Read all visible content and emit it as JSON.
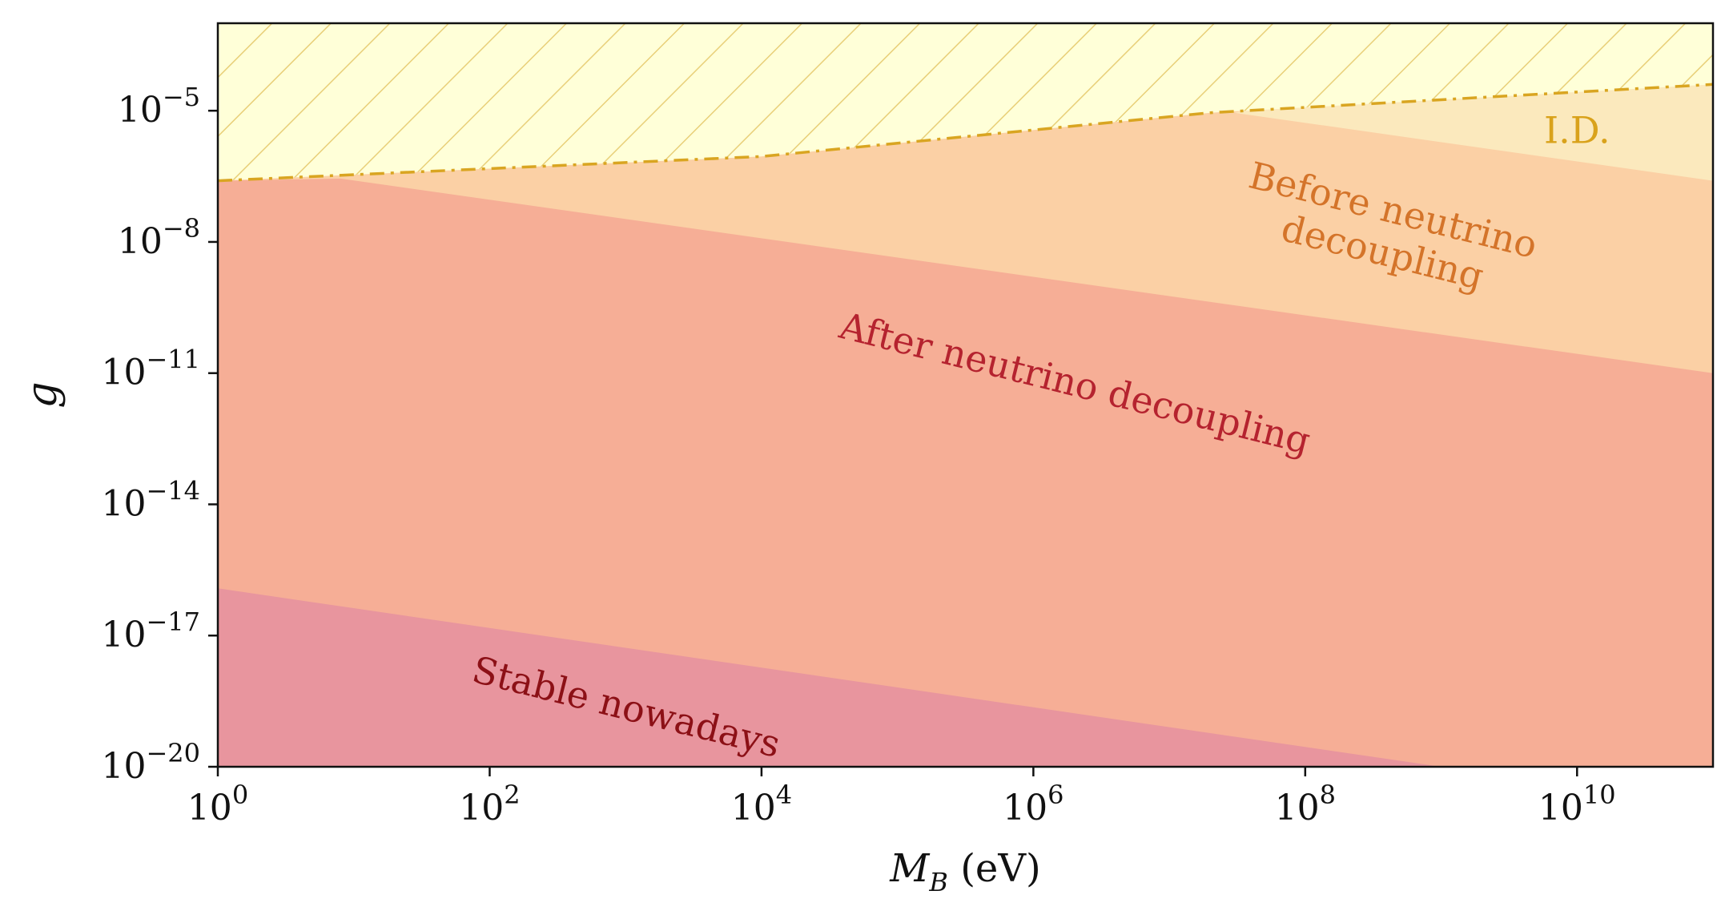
{
  "chart_data": {
    "type": "area",
    "x_scale": "log",
    "y_scale": "log",
    "xlim": [
      1,
      100000000000
    ],
    "ylim": [
      1e-20,
      0.001
    ],
    "xlabel": {
      "main": "M",
      "sub": "B",
      "unit": " (eV)"
    },
    "ylabel": "g",
    "x_ticks": [
      {
        "base": "10",
        "exp": "0"
      },
      {
        "base": "10",
        "exp": "2"
      },
      {
        "base": "10",
        "exp": "4"
      },
      {
        "base": "10",
        "exp": "6"
      },
      {
        "base": "10",
        "exp": "8"
      },
      {
        "base": "10",
        "exp": "10"
      }
    ],
    "y_ticks": [
      {
        "base": "10",
        "exp": "−5"
      },
      {
        "base": "10",
        "exp": "−8"
      },
      {
        "base": "10",
        "exp": "−11"
      },
      {
        "base": "10",
        "exp": "−14"
      },
      {
        "base": "10",
        "exp": "−17"
      },
      {
        "base": "10",
        "exp": "−20"
      }
    ],
    "grid": false,
    "regions": [
      {
        "name": "I.D.",
        "color": "#fbe9bd",
        "upper_boundary": "id_line",
        "lower_boundary": "before_boundary",
        "label": "I.D.",
        "label_color": "#d9a21b",
        "label_pos": [
          10000000000,
          3e-06
        ],
        "label_angle": 0
      },
      {
        "name": "Before neutrino decoupling",
        "color": "#fbd0a5",
        "upper_boundary": "id_line",
        "lower_boundary": "after_boundary",
        "label": "Before neutrino\ndecoupling",
        "label_color": "#d4742a",
        "label_pos": [
          400000000,
          1.5e-08
        ],
        "label_angle": 14
      },
      {
        "name": "After neutrino decoupling",
        "color": "#f6ae96",
        "upper_boundary": "after_boundary",
        "lower_boundary": "stable_boundary",
        "label": "After neutrino decoupling",
        "label_color": "#b5232f",
        "label_pos": [
          2000000,
          5e-12
        ],
        "label_angle": 14
      },
      {
        "name": "Stable nowadays",
        "color": "#e8959e",
        "upper_boundary": "stable_boundary",
        "lower_boundary": "bottom",
        "label": "Stable nowadays",
        "label_color": "#8c1016",
        "label_pos": [
          1000,
          2e-19
        ],
        "label_angle": 14
      },
      {
        "name": "excluded (hatched)",
        "color": "#ffffd8",
        "hatch_color": "#e8cf78",
        "upper_boundary": "top",
        "lower_boundary": "id_line"
      }
    ],
    "boundaries": {
      "id_line": {
        "style": "dash-dot",
        "color": "#d9a521",
        "points": [
          [
            1,
            2.5e-07
          ],
          [
            10000,
            9e-07
          ],
          [
            20000000,
            9e-06
          ],
          [
            100000000000,
            4e-05
          ]
        ]
      },
      "before_boundary": {
        "points": [
          [
            30000000,
            9e-06
          ],
          [
            100000000000,
            2.5e-07
          ]
        ]
      },
      "after_boundary": {
        "points": [
          [
            1,
            2.5e-07
          ],
          [
            8,
            2.8e-07
          ],
          [
            100000000000,
            1e-11
          ]
        ]
      },
      "stable_boundary": {
        "points": [
          [
            1,
            1.2e-16
          ],
          [
            1000000000,
            1e-20
          ]
        ]
      }
    }
  }
}
